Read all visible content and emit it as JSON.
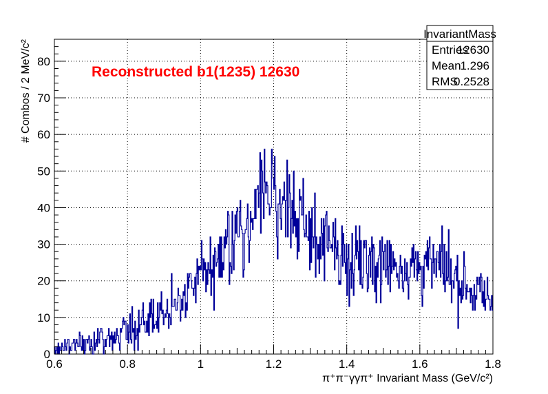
{
  "chart_data": {
    "type": "histogram",
    "title": "",
    "annotation": "Reconstructed b1(1235) 12630",
    "xlabel": "π⁺π⁻γγπ⁺ Invariant Mass (GeV/c²)",
    "ylabel": "# Combos / 2 MeV/c²",
    "xlim": [
      0.6,
      1.8
    ],
    "ylim": [
      0,
      86
    ],
    "x_ticks": [
      0.6,
      0.8,
      1,
      1.2,
      1.4,
      1.6,
      1.8
    ],
    "x_tick_labels": [
      "0.6",
      "0.8",
      "1",
      "1.2",
      "1.4",
      "1.6",
      "1.8"
    ],
    "y_ticks": [
      0,
      10,
      20,
      30,
      40,
      50,
      60,
      70,
      80
    ],
    "y_tick_labels": [
      "0",
      "10",
      "20",
      "30",
      "40",
      "50",
      "60",
      "70",
      "80"
    ],
    "grid": true,
    "line_color": "#000099",
    "bin_width": 0.002,
    "bin_start": 0.6,
    "bin_anchors": {
      "x": [
        0.6,
        0.65,
        0.7,
        0.75,
        0.8,
        0.85,
        0.9,
        0.95,
        1.0,
        1.05,
        1.1,
        1.15,
        1.18,
        1.2,
        1.25,
        1.3,
        1.35,
        1.4,
        1.45,
        1.5,
        1.55,
        1.6,
        1.65,
        1.7,
        1.75,
        1.8
      ],
      "y": [
        1,
        2,
        3,
        4,
        6,
        9,
        12,
        16,
        22,
        27,
        33,
        40,
        45,
        43,
        38,
        33,
        29,
        27,
        26,
        25,
        24,
        24,
        24,
        21,
        17,
        14
      ]
    },
    "stats_box": {
      "title": "InvariantMass",
      "rows": [
        {
          "label": "Entries",
          "value": "12630"
        },
        {
          "label": "Mean",
          "value": "1.296"
        },
        {
          "label": "RMS",
          "value": "0.2528"
        }
      ]
    }
  }
}
